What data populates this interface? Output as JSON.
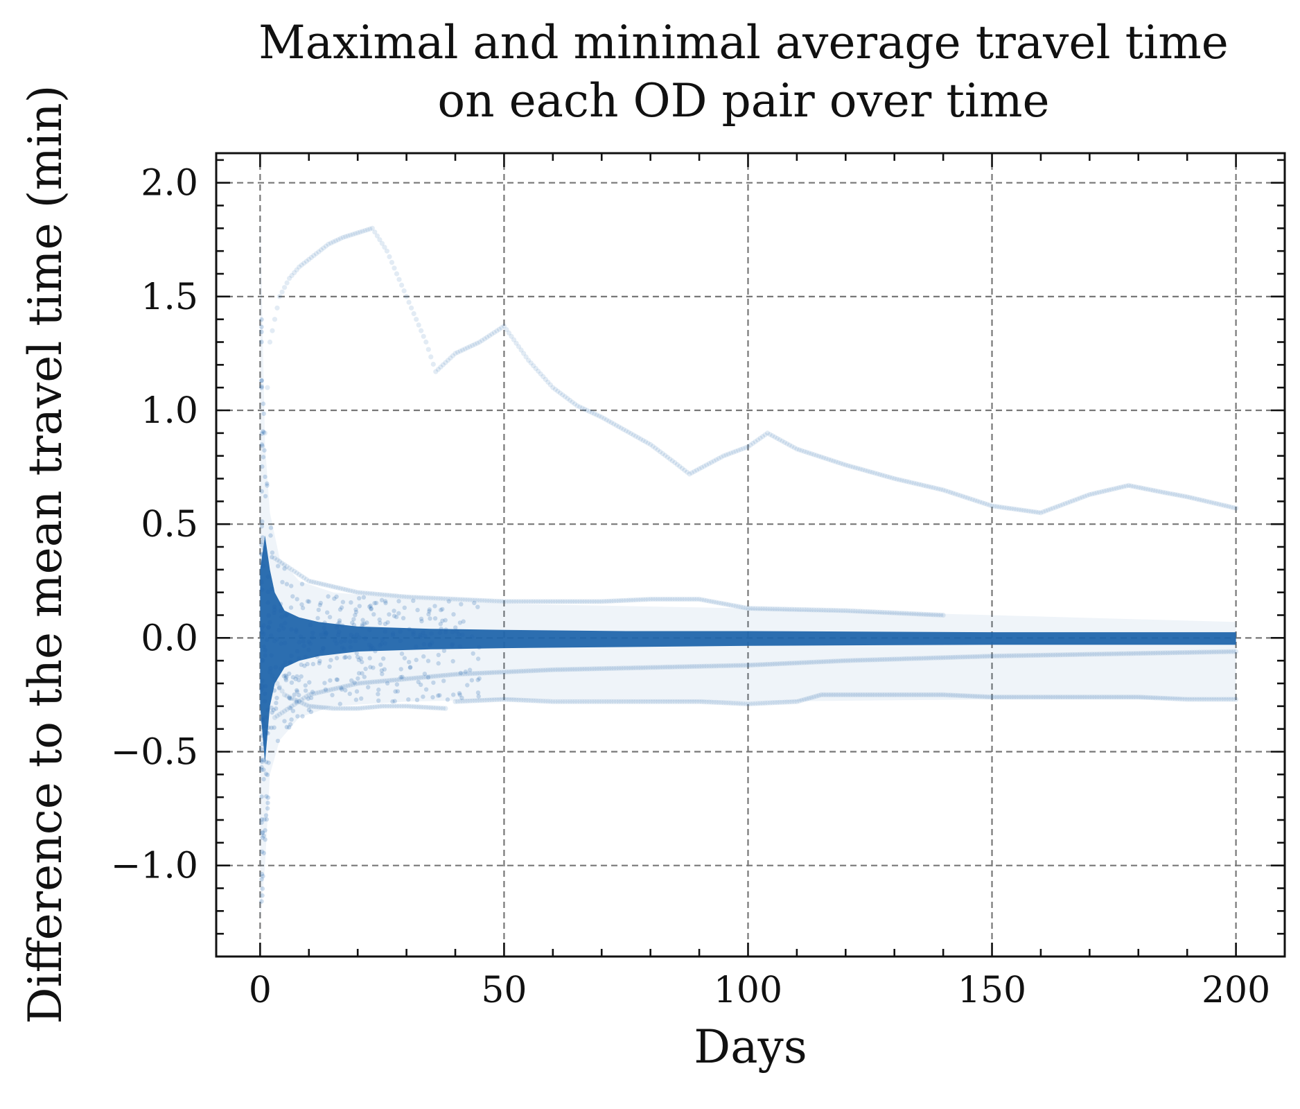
{
  "chart_data": {
    "type": "scatter",
    "title_line1": "Maximal and minimal average travel time",
    "title_line2": "on each OD pair over time",
    "xlabel": "Days",
    "ylabel": "Difference to the mean travel time (min)",
    "xlim": [
      -9,
      210
    ],
    "ylim": [
      -1.4,
      2.13
    ],
    "xticks": [
      0,
      50,
      100,
      150,
      200
    ],
    "xtick_labels": [
      "0",
      "50",
      "100",
      "150",
      "200"
    ],
    "yticks": [
      -1.0,
      -0.5,
      0.0,
      0.5,
      1.0,
      1.5,
      2.0
    ],
    "ytick_labels": [
      "−1.0",
      "−0.5",
      "0.0",
      "0.5",
      "1.0",
      "1.5",
      "2.0"
    ],
    "grid": true,
    "legend": "none",
    "color": "#2166ac",
    "band": {
      "x": [
        0,
        1,
        2,
        3,
        5,
        8,
        12,
        20,
        35,
        50,
        75,
        100,
        150,
        200
      ],
      "upper": [
        0.3,
        0.45,
        0.3,
        0.2,
        0.12,
        0.09,
        0.07,
        0.05,
        0.04,
        0.035,
        0.03,
        0.03,
        0.025,
        0.025
      ],
      "lower": [
        -0.3,
        -0.55,
        -0.3,
        -0.2,
        -0.13,
        -0.1,
        -0.08,
        -0.06,
        -0.05,
        -0.045,
        -0.04,
        -0.035,
        -0.03,
        -0.03
      ]
    },
    "spread": {
      "x": [
        0,
        1,
        2,
        4,
        8,
        15,
        30,
        50,
        100,
        150,
        200
      ],
      "upper": [
        1.9,
        0.85,
        0.55,
        0.35,
        0.25,
        0.2,
        0.17,
        0.15,
        0.13,
        0.1,
        0.07
      ],
      "lower": [
        -1.25,
        -1.0,
        -0.6,
        -0.45,
        -0.35,
        -0.3,
        -0.28,
        -0.27,
        -0.28,
        -0.27,
        -0.27
      ]
    },
    "series": [
      {
        "x": [
          1,
          2,
          4,
          6,
          8,
          11,
          14,
          17,
          20,
          23,
          26,
          30,
          34,
          36,
          40,
          45,
          50,
          55,
          60,
          65,
          70,
          75,
          80,
          85,
          88,
          95,
          100,
          104,
          110,
          120,
          130,
          140,
          150,
          160,
          165,
          170,
          178,
          185,
          190,
          200
        ],
        "y": [
          0.9,
          1.3,
          1.5,
          1.58,
          1.63,
          1.68,
          1.73,
          1.76,
          1.78,
          1.8,
          1.7,
          1.5,
          1.3,
          1.17,
          1.25,
          1.3,
          1.37,
          1.22,
          1.1,
          1.02,
          0.97,
          0.91,
          0.85,
          0.77,
          0.72,
          0.8,
          0.84,
          0.9,
          0.83,
          0.76,
          0.7,
          0.65,
          0.58,
          0.55,
          0.59,
          0.63,
          0.67,
          0.64,
          0.62,
          0.57
        ]
      },
      {
        "x": [
          2,
          5,
          10,
          15,
          20,
          25,
          30,
          38
        ],
        "y": [
          -0.15,
          -0.25,
          -0.3,
          -0.31,
          -0.31,
          -0.3,
          -0.3,
          -0.31
        ]
      },
      {
        "x": [
          40,
          50,
          60,
          70,
          80,
          90,
          100,
          110,
          115,
          120,
          130,
          140,
          150,
          160,
          170,
          180,
          190,
          200
        ],
        "y": [
          -0.28,
          -0.27,
          -0.28,
          -0.28,
          -0.28,
          -0.28,
          -0.29,
          -0.28,
          -0.25,
          -0.25,
          -0.25,
          -0.25,
          -0.26,
          -0.26,
          -0.26,
          -0.26,
          -0.27,
          -0.27
        ]
      },
      {
        "x": [
          3,
          10,
          20,
          30,
          40,
          50,
          60,
          70,
          80,
          90,
          100,
          120,
          140
        ],
        "y": [
          0.35,
          0.25,
          0.2,
          0.18,
          0.17,
          0.16,
          0.16,
          0.16,
          0.17,
          0.17,
          0.13,
          0.12,
          0.1
        ]
      },
      {
        "x": [
          3,
          10,
          20,
          30,
          40,
          50,
          60,
          80,
          100,
          120,
          150,
          200
        ],
        "y": [
          -0.35,
          -0.25,
          -0.2,
          -0.18,
          -0.16,
          -0.15,
          -0.14,
          -0.13,
          -0.12,
          -0.1,
          -0.08,
          -0.06
        ]
      }
    ]
  }
}
